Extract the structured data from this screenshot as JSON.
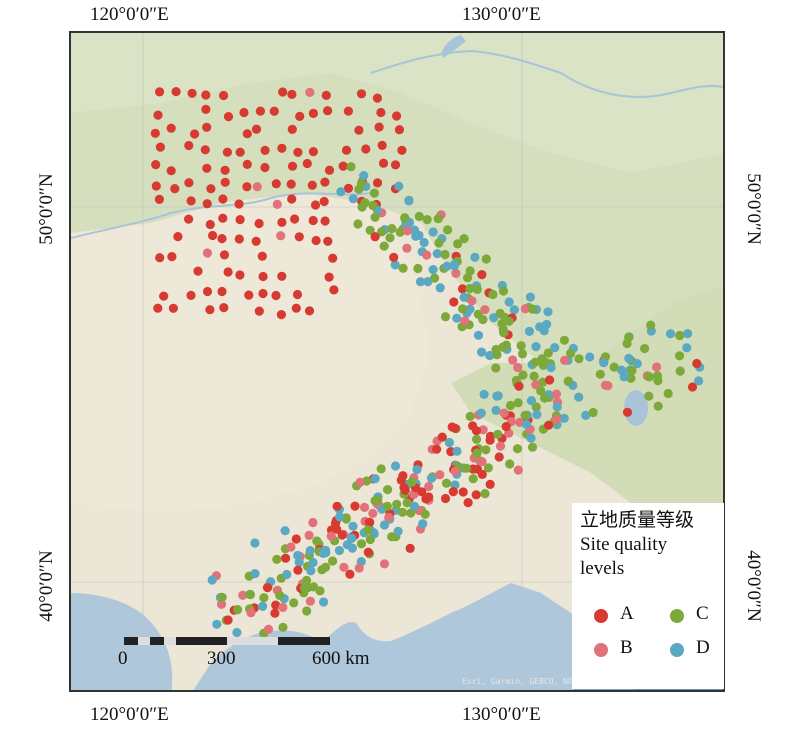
{
  "coordinates": {
    "top_left": "120°0′0″E",
    "top_right": "130°0′0″E",
    "bottom_left": "120°0′0″E",
    "bottom_right": "130°0′0″E",
    "left_upper": "50°0′0″N",
    "left_lower": "40°0′0″N",
    "right_upper": "50°0′0″N",
    "right_lower": "40°0′0″N"
  },
  "legend": {
    "title_cn": "立地质量等级",
    "title_en_line1": "Site quality",
    "title_en_line2": "levels",
    "items": [
      {
        "label": "A",
        "color": "#d63a31"
      },
      {
        "label": "B",
        "color": "#e2727a"
      },
      {
        "label": "C",
        "color": "#7da83a"
      },
      {
        "label": "D",
        "color": "#5aa8c2"
      }
    ]
  },
  "scale_bar": {
    "labels": [
      "0",
      "300",
      "600 km"
    ]
  },
  "attribution": "Esri, Garmin, GEBCO, NOAA NGDC, and other contributors",
  "colors": {
    "land": "#e9e4d3",
    "forest": "#cfdcb5",
    "water": "#a9c4d9",
    "deep_sea": "#7f9fbd"
  }
}
